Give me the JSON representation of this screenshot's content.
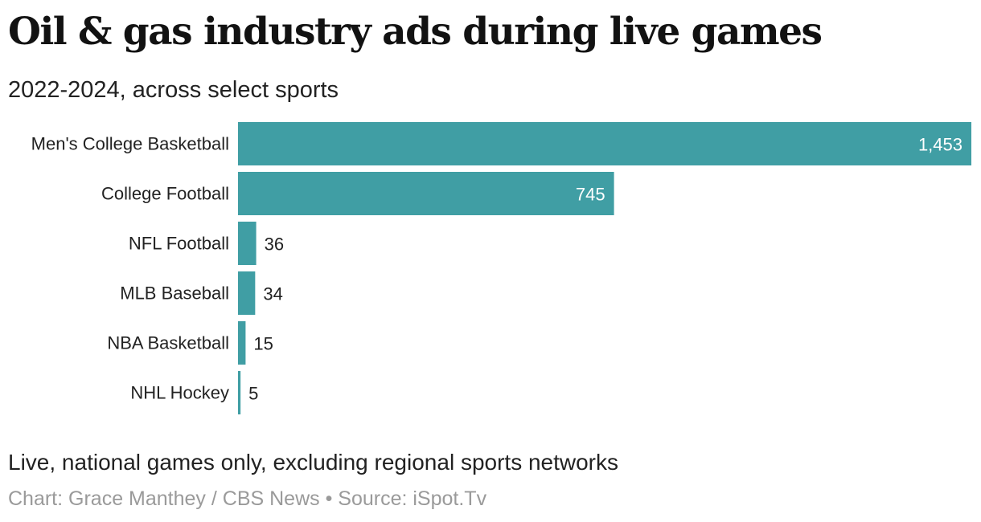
{
  "title": "Oil & gas industry ads during live games",
  "subtitle": "2022-2024, across select sports",
  "note": "Live, national games only, excluding regional sports networks",
  "credit": "Chart: Grace Manthey / CBS News • Source: iSpot.Tv",
  "colors": {
    "bar": "#409ea4",
    "label_inside": "#ffffff",
    "label_outside": "#222222"
  },
  "chart_data": {
    "type": "bar",
    "orientation": "horizontal",
    "categories": [
      "Men's College Basketball",
      "College Football",
      "NFL Football",
      "MLB Baseball",
      "NBA Basketball",
      "NHL Hockey"
    ],
    "values": [
      1453,
      745,
      36,
      34,
      15,
      5
    ],
    "value_labels": [
      "1,453",
      "745",
      "36",
      "34",
      "15",
      "5"
    ],
    "xlim": [
      0,
      1453
    ],
    "grid": false,
    "legend": "none"
  }
}
